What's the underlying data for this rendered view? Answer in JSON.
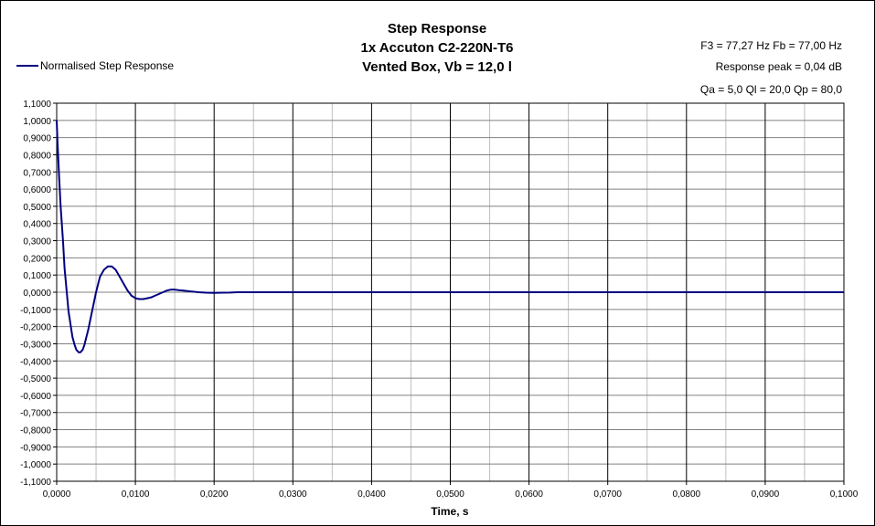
{
  "chart_data": {
    "type": "line",
    "title_lines": [
      "Step Response",
      "1x Accuton C2-220N-T6",
      "Vented Box, Vb = 12,0 l"
    ],
    "info_lines": [
      "F3 = 77,27 Hz  Fb = 77,00 Hz",
      "Response peak = 0,04 dB",
      "Qa = 5,0  Ql = 20,0  Qp = 80,0"
    ],
    "xlabel": "Time, s",
    "ylabel": "",
    "xlim": [
      0,
      0.1
    ],
    "ylim": [
      -1.1,
      1.1
    ],
    "x_ticks": [
      "0,0000",
      "0,0100",
      "0,0200",
      "0,0300",
      "0,0400",
      "0,0500",
      "0,0600",
      "0,0700",
      "0,0800",
      "0,0900",
      "0,1000"
    ],
    "y_ticks": [
      "1,1000",
      "1,0000",
      "0,9000",
      "0,8000",
      "0,7000",
      "0,6000",
      "0,5000",
      "0,4000",
      "0,3000",
      "0,2000",
      "0,1000",
      "0,0000",
      "-0,1000",
      "-0,2000",
      "-0,3000",
      "-0,4000",
      "-0,5000",
      "-0,6000",
      "-0,7000",
      "-0,8000",
      "-0,9000",
      "-1,0000",
      "-1,1000"
    ],
    "grid": true,
    "legend_position": "top-left",
    "series": [
      {
        "name": "Normalised Step Response",
        "color": "#000080",
        "x": [
          0,
          0.0001,
          0.0003,
          0.0005,
          0.0008,
          0.001,
          0.0013,
          0.0015,
          0.0018,
          0.002,
          0.0023,
          0.0025,
          0.0028,
          0.003,
          0.0033,
          0.0035,
          0.004,
          0.0045,
          0.005,
          0.0055,
          0.006,
          0.0065,
          0.007,
          0.0075,
          0.008,
          0.0085,
          0.009,
          0.0095,
          0.01,
          0.0105,
          0.011,
          0.0115,
          0.012,
          0.0125,
          0.013,
          0.0135,
          0.014,
          0.0145,
          0.015,
          0.0155,
          0.016,
          0.017,
          0.018,
          0.019,
          0.02,
          0.021,
          0.022,
          0.023,
          0.024,
          0.025,
          0.026,
          0.027,
          0.028,
          0.029,
          0.03,
          0.035,
          0.04,
          0.05,
          0.06,
          0.07,
          0.08,
          0.09,
          0.1
        ],
        "y": [
          1.0,
          0.88,
          0.68,
          0.5,
          0.3,
          0.14,
          -0.01,
          -0.11,
          -0.2,
          -0.26,
          -0.31,
          -0.335,
          -0.35,
          -0.35,
          -0.335,
          -0.31,
          -0.22,
          -0.11,
          0.0,
          0.09,
          0.13,
          0.15,
          0.15,
          0.13,
          0.09,
          0.05,
          0.01,
          -0.02,
          -0.035,
          -0.04,
          -0.04,
          -0.035,
          -0.03,
          -0.02,
          -0.01,
          0.0,
          0.01,
          0.015,
          0.015,
          0.012,
          0.01,
          0.005,
          0.0,
          -0.003,
          -0.004,
          -0.003,
          -0.002,
          0.0,
          0.0,
          0.0,
          0.0,
          0.0,
          0.0,
          0.0,
          0.0,
          0.0,
          0.0,
          0.0,
          0.0,
          0.0,
          0.0,
          0.0,
          0.0
        ]
      }
    ]
  }
}
